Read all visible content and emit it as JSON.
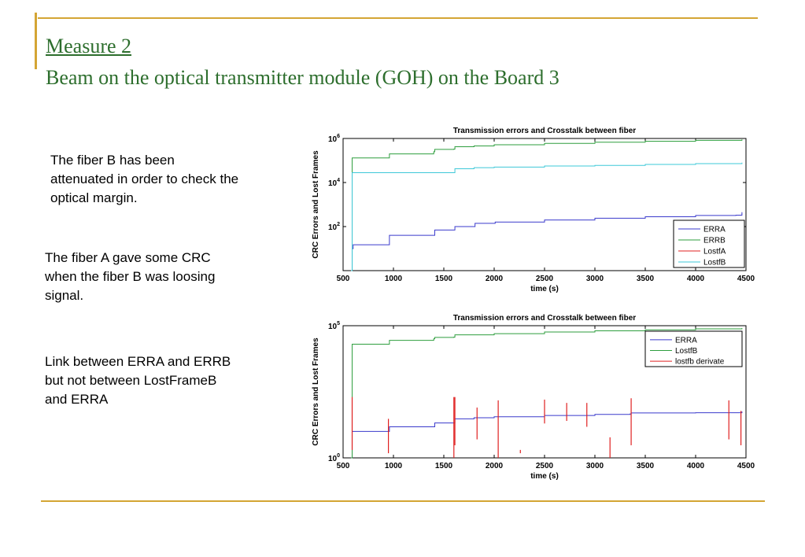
{
  "slide": {
    "title": "Measure 2",
    "subtitle": "Beam on the optical transmitter module (GOH) on the Board 3",
    "paragraphs": [
      "The fiber B has been\nattenuated in order to check the\noptical margin.",
      "The fiber A gave some CRC\nwhen the fiber B was loosing\nsignal.",
      "Link between ERRA and ERRB\nbut not between LostFrameB\nand ERRA"
    ],
    "colors": {
      "title": "#2d6e2d",
      "rule": "#d4a534"
    }
  },
  "chart_data": [
    {
      "type": "line",
      "title": "Transmission errors and Crosstalk between fiber",
      "xlabel": "time (s)",
      "ylabel": "CRC Errors and Lost Frames",
      "xlim": [
        500,
        4500
      ],
      "ylim": [
        1,
        1000000
      ],
      "yscale": "log",
      "x_ticks": [
        "500",
        "1000",
        "1500",
        "2000",
        "2500",
        "3000",
        "3500",
        "4000",
        "4500"
      ],
      "y_ticks": [
        {
          "base": "10",
          "exp": "2"
        },
        {
          "base": "10",
          "exp": "4"
        },
        {
          "base": "10",
          "exp": "6"
        }
      ],
      "legend_position": "bottom-right",
      "series": [
        {
          "name": "ERRA",
          "color": "#3a3acc",
          "points": [
            [
              580,
              1
            ],
            [
              590,
              10
            ],
            [
              600,
              15
            ],
            [
              950,
              15
            ],
            [
              960,
              40
            ],
            [
              1400,
              40
            ],
            [
              1410,
              70
            ],
            [
              1600,
              70
            ],
            [
              1610,
              100
            ],
            [
              1800,
              100
            ],
            [
              1810,
              140
            ],
            [
              2000,
              140
            ],
            [
              2010,
              160
            ],
            [
              2500,
              200
            ],
            [
              3000,
              240
            ],
            [
              3500,
              280
            ],
            [
              4000,
              320
            ],
            [
              4400,
              330
            ],
            [
              4460,
              450
            ]
          ]
        },
        {
          "name": "ERRB",
          "color": "#2e9e3e",
          "points": [
            [
              580,
              1
            ],
            [
              590,
              130000
            ],
            [
              950,
              130000
            ],
            [
              960,
              200000
            ],
            [
              1400,
              250000
            ],
            [
              1410,
              320000
            ],
            [
              1600,
              330000
            ],
            [
              1610,
              420000
            ],
            [
              1800,
              460000
            ],
            [
              2000,
              520000
            ],
            [
              2500,
              600000
            ],
            [
              3000,
              680000
            ],
            [
              3500,
              750000
            ],
            [
              4000,
              820000
            ],
            [
              4460,
              900000
            ]
          ]
        },
        {
          "name": "LostfA",
          "color": "#e02020",
          "points": []
        },
        {
          "name": "LostfB",
          "color": "#3ec8d8",
          "points": [
            [
              580,
              1
            ],
            [
              590,
              28000
            ],
            [
              1600,
              28000
            ],
            [
              1610,
              42000
            ],
            [
              1800,
              47000
            ],
            [
              2000,
              50000
            ],
            [
              2500,
              56000
            ],
            [
              3000,
              60000
            ],
            [
              3500,
              66000
            ],
            [
              4000,
              72000
            ],
            [
              4460,
              80000
            ]
          ]
        }
      ]
    },
    {
      "type": "line",
      "title": "Transmission errors and Crosstalk between fiber",
      "xlabel": "time (s)",
      "ylabel": "CRC Errors and Lost Frames",
      "xlim": [
        500,
        4500
      ],
      "ylim": [
        1,
        100000
      ],
      "yscale": "log",
      "x_ticks": [
        "500",
        "1000",
        "1500",
        "2000",
        "2500",
        "3000",
        "3500",
        "4000",
        "4500"
      ],
      "y_ticks": [
        {
          "base": "10",
          "exp": "0"
        },
        {
          "base": "10",
          "exp": "5"
        }
      ],
      "legend_position": "top-right",
      "series": [
        {
          "name": "ERRA",
          "color": "#3a3acc",
          "points": [
            [
              580,
              1
            ],
            [
              590,
              10
            ],
            [
              950,
              10
            ],
            [
              960,
              15
            ],
            [
              1400,
              15
            ],
            [
              1410,
              21
            ],
            [
              1600,
              21
            ],
            [
              1610,
              30
            ],
            [
              1800,
              33
            ],
            [
              2000,
              36
            ],
            [
              2500,
              40
            ],
            [
              3000,
              44
            ],
            [
              3350,
              46
            ],
            [
              3360,
              50
            ],
            [
              4000,
              51
            ],
            [
              4460,
              57
            ]
          ]
        },
        {
          "name": "LostfB",
          "color": "#2e9e3e",
          "points": [
            [
              580,
              1
            ],
            [
              590,
              20000
            ],
            [
              950,
              20000
            ],
            [
              960,
              28000
            ],
            [
              1400,
              32000
            ],
            [
              1410,
              36000
            ],
            [
              1600,
              37000
            ],
            [
              1610,
              45000
            ],
            [
              2000,
              50000
            ],
            [
              2500,
              58000
            ],
            [
              3000,
              64000
            ],
            [
              3500,
              70000
            ],
            [
              4000,
              76000
            ],
            [
              4460,
              82000
            ]
          ]
        },
        {
          "name": "lostfb derivate",
          "color": "#e02020",
          "spikes": [
            [
              590,
              2,
              200
            ],
            [
              950,
              1.5,
              30
            ],
            [
              1600,
              1,
              200
            ],
            [
              1610,
              3,
              200
            ],
            [
              1830,
              5,
              80
            ],
            [
              2040,
              1,
              150
            ],
            [
              2260,
              1.5,
              2
            ],
            [
              2500,
              20,
              160
            ],
            [
              2720,
              25,
              120
            ],
            [
              2920,
              15,
              120
            ],
            [
              3150,
              1,
              6
            ],
            [
              3360,
              3,
              180
            ],
            [
              4330,
              5,
              150
            ],
            [
              4450,
              3,
              60
            ]
          ]
        }
      ]
    }
  ]
}
